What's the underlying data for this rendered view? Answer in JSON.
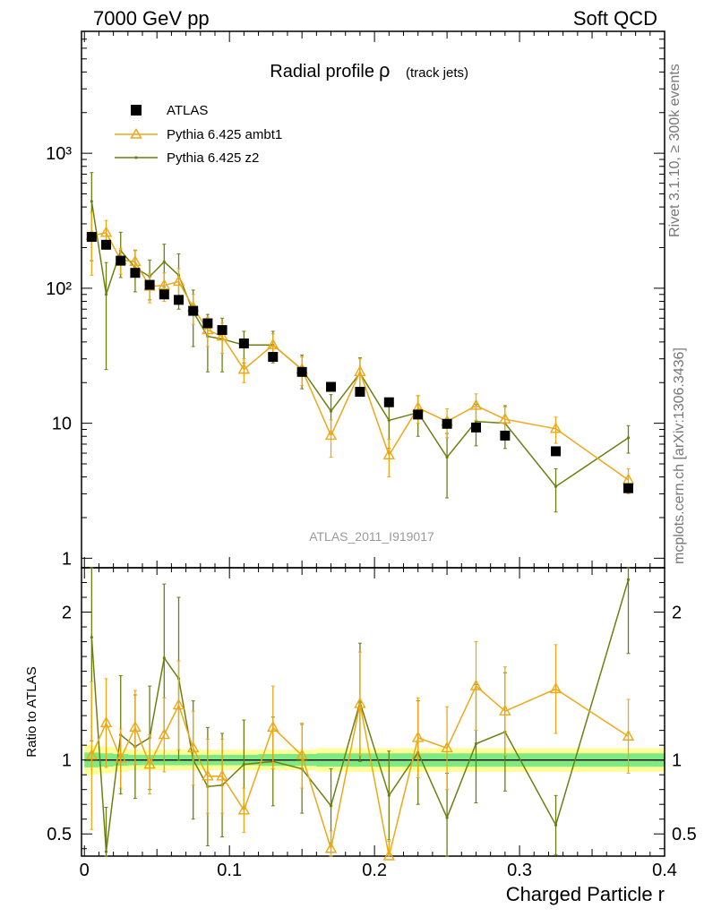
{
  "header": {
    "energy_label": "7000 GeV pp",
    "process_label": "Soft QCD"
  },
  "side_labels": {
    "rivet": "Rivet 3.1.10, ≥ 300k events",
    "mcplots": "mcplots.cern.ch [arXiv:1306.3436]"
  },
  "colors": {
    "ambt1": "#eea715",
    "z2": "#6d7f10",
    "data": "#000000",
    "band_outer": "#ffff99",
    "band_inner": "#7eea82"
  },
  "chart_data": [
    {
      "type": "line",
      "title": "Radial profile",
      "title_symbol": "ρ",
      "subtitle": "(track jets)",
      "analysis_tag": "ATLAS_2011_I919017",
      "xlabel": "Charged Particle r",
      "ylabel": "",
      "yscale": "log",
      "ylim": [
        0.85,
        8000
      ],
      "xlim": [
        -0.002,
        0.4
      ],
      "y_tick_labels": [
        "1",
        "10",
        "10²",
        "10³"
      ],
      "x": [
        0.005,
        0.015,
        0.025,
        0.035,
        0.045,
        0.055,
        0.065,
        0.075,
        0.085,
        0.095,
        0.11,
        0.13,
        0.15,
        0.17,
        0.19,
        0.21,
        0.23,
        0.25,
        0.27,
        0.29,
        0.325,
        0.375
      ],
      "legend": [
        "ATLAS",
        "Pythia 6.425 ambt1",
        "Pythia 6.425 z2"
      ],
      "series": [
        {
          "name": "ATLAS",
          "style": "square",
          "values": [
            240,
            210,
            160,
            130,
            106,
            90,
            82,
            68,
            55,
            49,
            39,
            31,
            24,
            18.6,
            17.1,
            14.3,
            11.6,
            9.9,
            9.3,
            8.1,
            6.2,
            3.3
          ]
        },
        {
          "name": "Pythia 6.425 ambt1",
          "style": "triangle",
          "values": [
            245,
            258,
            162,
            157,
            103,
            105,
            112,
            72,
            49,
            44,
            25,
            38,
            25,
            8.1,
            24,
            5.8,
            13,
            10.3,
            13.5,
            10.7,
            9.1,
            3.8
          ],
          "errors": [
            120,
            60,
            35,
            35,
            25,
            25,
            28,
            18,
            12,
            11,
            5,
            8,
            6,
            2.5,
            6,
            1.8,
            3,
            2.5,
            3,
            2.5,
            2,
            0.8
          ]
        },
        {
          "name": "Pythia 6.425 z2",
          "style": "dot",
          "values": [
            440,
            90,
            190,
            142,
            122,
            157,
            125,
            67,
            44,
            42,
            38,
            38,
            25,
            12.3,
            23.5,
            10.5,
            12,
            5.6,
            10.3,
            10,
            3.4,
            7.8
          ],
          "errors": [
            280,
            65,
            70,
            48,
            40,
            55,
            55,
            30,
            20,
            18,
            10,
            10,
            7,
            4,
            7,
            4,
            4,
            2.8,
            3.5,
            3.5,
            1.2,
            1.8
          ]
        }
      ]
    },
    {
      "type": "line",
      "title": "",
      "xlabel": "Charged Particle r",
      "ylabel": "Ratio to ATLAS",
      "ylim": [
        0.35,
        2.3
      ],
      "xlim": [
        -0.002,
        0.4
      ],
      "y_tick_labels": [
        "0.5",
        "1",
        "2"
      ],
      "x_tick_labels": [
        "0",
        "0.1",
        "0.2",
        "0.3",
        "0.4"
      ],
      "x": [
        0.005,
        0.015,
        0.025,
        0.035,
        0.045,
        0.055,
        0.065,
        0.075,
        0.085,
        0.095,
        0.11,
        0.13,
        0.15,
        0.17,
        0.19,
        0.21,
        0.23,
        0.25,
        0.27,
        0.29,
        0.325,
        0.375
      ],
      "reference": 1.0,
      "band_outer_halfwidth": [
        0.1,
        0.09,
        0.08,
        0.07,
        0.07,
        0.07,
        0.07,
        0.07,
        0.07,
        0.07,
        0.07,
        0.07,
        0.07,
        0.08,
        0.08,
        0.08,
        0.08,
        0.08,
        0.08,
        0.08,
        0.08,
        0.08
      ],
      "band_inner_halfwidth": [
        0.05,
        0.045,
        0.04,
        0.035,
        0.035,
        0.035,
        0.035,
        0.035,
        0.035,
        0.035,
        0.035,
        0.04,
        0.04,
        0.045,
        0.045,
        0.045,
        0.045,
        0.045,
        0.045,
        0.045,
        0.045,
        0.045
      ],
      "series": [
        {
          "name": "Pythia 6.425 ambt1",
          "values": [
            1.03,
            1.25,
            1.01,
            1.22,
            0.97,
            1.17,
            1.37,
            1.08,
            0.89,
            0.89,
            0.66,
            1.22,
            1.03,
            0.4,
            1.38,
            0.35,
            1.15,
            1.08,
            1.5,
            1.33,
            1.48,
            1.16
          ],
          "errors": [
            0.5,
            0.3,
            0.2,
            0.25,
            0.2,
            0.25,
            0.3,
            0.25,
            0.25,
            0.25,
            0.15,
            0.28,
            0.22,
            0.12,
            0.35,
            0.1,
            0.27,
            0.28,
            0.3,
            0.3,
            0.3,
            0.25
          ]
        },
        {
          "name": "Pythia 6.425 z2",
          "values": [
            1.83,
            0.38,
            1.17,
            1.09,
            1.15,
            1.69,
            1.55,
            1.0,
            0.82,
            0.83,
            0.97,
            0.99,
            0.94,
            0.69,
            1.39,
            0.76,
            1.05,
            0.61,
            1.11,
            1.19,
            0.56,
            2.22
          ],
          "errors": [
            0.7,
            0.3,
            0.4,
            0.35,
            0.35,
            0.5,
            0.55,
            0.4,
            0.4,
            0.35,
            0.3,
            0.3,
            0.3,
            0.25,
            0.4,
            0.3,
            0.35,
            0.3,
            0.4,
            0.4,
            0.2,
            0.5
          ]
        }
      ]
    }
  ]
}
